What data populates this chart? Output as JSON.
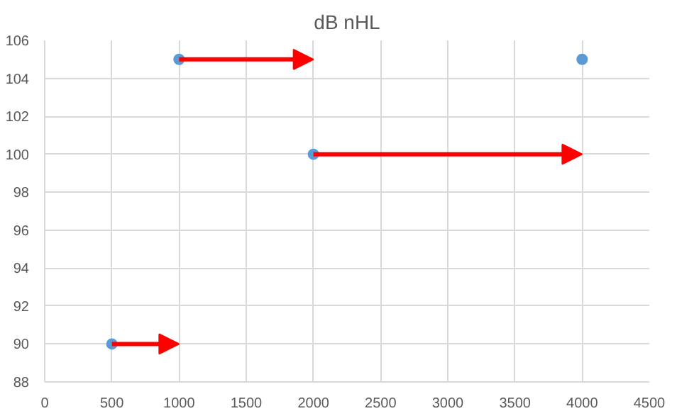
{
  "chart_data": {
    "type": "scatter",
    "title": "dB nHL",
    "x": [
      500,
      1000,
      2000,
      4000
    ],
    "series": [
      {
        "color": "#5b9bd5",
        "values": [
          90,
          105,
          100,
          105
        ]
      }
    ],
    "xlim": [
      0,
      4500
    ],
    "xticks": [
      0,
      500,
      1000,
      1500,
      2000,
      2500,
      3000,
      3500,
      4000,
      4500
    ],
    "ylim": [
      88,
      106
    ],
    "yticks": [
      88,
      90,
      92,
      94,
      96,
      98,
      100,
      102,
      104,
      106
    ],
    "grid": true,
    "marker": "circle"
  }
}
